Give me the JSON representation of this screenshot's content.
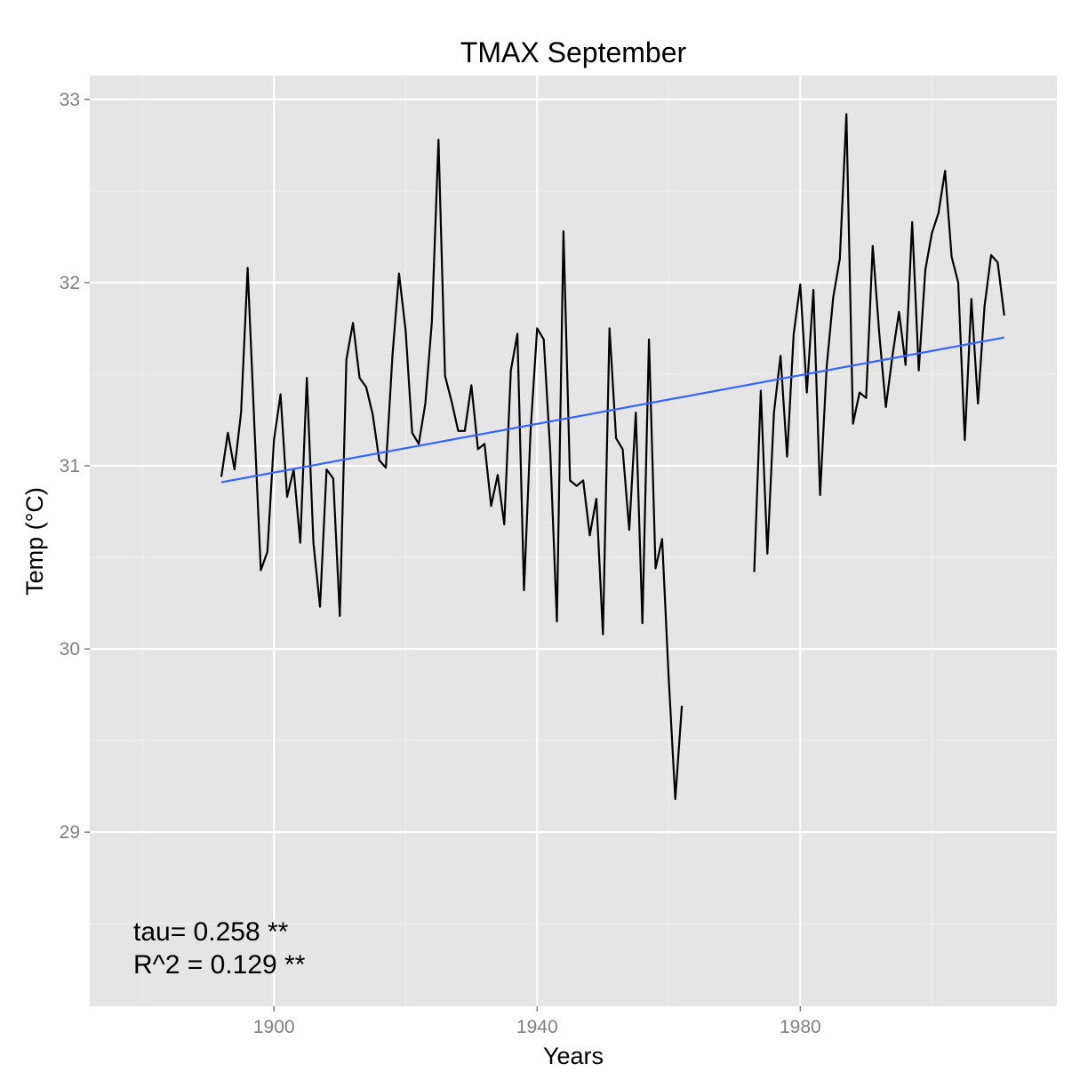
{
  "chart_data": {
    "type": "line",
    "title": "TMAX September",
    "xlabel": "Years",
    "ylabel": "Temp (°C)",
    "xlim": [
      1872,
      2019
    ],
    "ylim": [
      28.05,
      33.13
    ],
    "x_ticks": [
      1900,
      1940,
      1980
    ],
    "y_ticks": [
      29,
      30,
      31,
      32,
      33
    ],
    "grid": true,
    "colors": {
      "panel": "#e5e5e5",
      "grid": "#ffffff",
      "series": "#000000",
      "trend": "#3366ff"
    },
    "series": [
      {
        "x": [
          1892,
          1893,
          1894,
          1895,
          1896,
          1897,
          1898,
          1899,
          1900,
          1901,
          1902,
          1903,
          1904,
          1905,
          1906,
          1907,
          1908,
          1909,
          1910,
          1911,
          1912,
          1913,
          1914,
          1915,
          1916,
          1917,
          1918,
          1919,
          1920,
          1921,
          1922,
          1923,
          1924,
          1925,
          1926,
          1927,
          1928,
          1929,
          1930,
          1931,
          1932,
          1933,
          1934,
          1935,
          1936,
          1937,
          1938,
          1939,
          1940,
          1941,
          1942,
          1943,
          1944,
          1945,
          1946,
          1947,
          1948,
          1949,
          1950,
          1951,
          1952,
          1953,
          1954,
          1955,
          1956,
          1957,
          1958,
          1959,
          1960,
          1961,
          1962,
          1963,
          1964,
          1965,
          1966,
          1967,
          1968,
          1969,
          1970,
          1971,
          1972,
          1973,
          1974,
          1975,
          1976,
          1977,
          1978,
          1979,
          1980,
          1981,
          1982,
          1983,
          1984,
          1985,
          1986,
          1987,
          1988,
          1989,
          1990,
          1991,
          1992,
          1993,
          1994,
          1995,
          1996,
          1997,
          1998,
          1999,
          2000,
          2001,
          2002,
          2003,
          2004,
          2005,
          2006,
          2007,
          2008,
          2009,
          2010,
          2011
        ],
        "values": [
          30.94,
          31.18,
          30.98,
          31.29,
          32.08,
          31.24,
          30.43,
          30.53,
          31.14,
          31.39,
          30.83,
          30.98,
          30.58,
          31.48,
          30.58,
          30.23,
          30.98,
          30.93,
          30.18,
          31.58,
          31.78,
          31.48,
          31.43,
          31.28,
          31.03,
          30.99,
          31.6,
          32.05,
          31.74,
          31.18,
          31.12,
          31.34,
          31.79,
          32.78,
          31.49,
          31.35,
          31.19,
          31.19,
          31.44,
          31.09,
          31.12,
          30.78,
          30.95,
          30.68,
          31.52,
          31.72,
          30.32,
          31.19,
          31.75,
          31.69,
          31.07,
          30.15,
          32.28,
          30.92,
          30.89,
          30.92,
          30.62,
          30.82,
          30.08,
          31.75,
          31.15,
          31.09,
          30.65,
          31.29,
          30.14,
          31.69,
          30.44,
          30.6,
          29.84,
          29.18,
          29.69,
          null,
          null,
          null,
          null,
          null,
          null,
          null,
          null,
          null,
          null,
          30.42,
          31.41,
          30.52,
          31.29,
          31.6,
          31.05,
          31.72,
          31.99,
          31.4,
          31.96,
          30.84,
          31.54,
          31.92,
          32.13,
          32.92,
          31.23,
          31.4,
          31.37,
          32.2,
          31.72,
          31.32,
          31.6,
          31.84,
          31.55,
          32.33,
          31.52,
          32.07,
          32.27,
          32.38,
          32.61,
          32.14,
          32.0,
          31.14,
          31.91,
          31.34,
          31.87,
          32.15,
          32.11,
          31.82
        ]
      }
    ],
    "trend": {
      "x": [
        1892,
        2011
      ],
      "y": [
        30.91,
        31.7
      ]
    },
    "annotations": [
      "tau= 0.258 **",
      "R^2 =  0.129 **"
    ]
  }
}
